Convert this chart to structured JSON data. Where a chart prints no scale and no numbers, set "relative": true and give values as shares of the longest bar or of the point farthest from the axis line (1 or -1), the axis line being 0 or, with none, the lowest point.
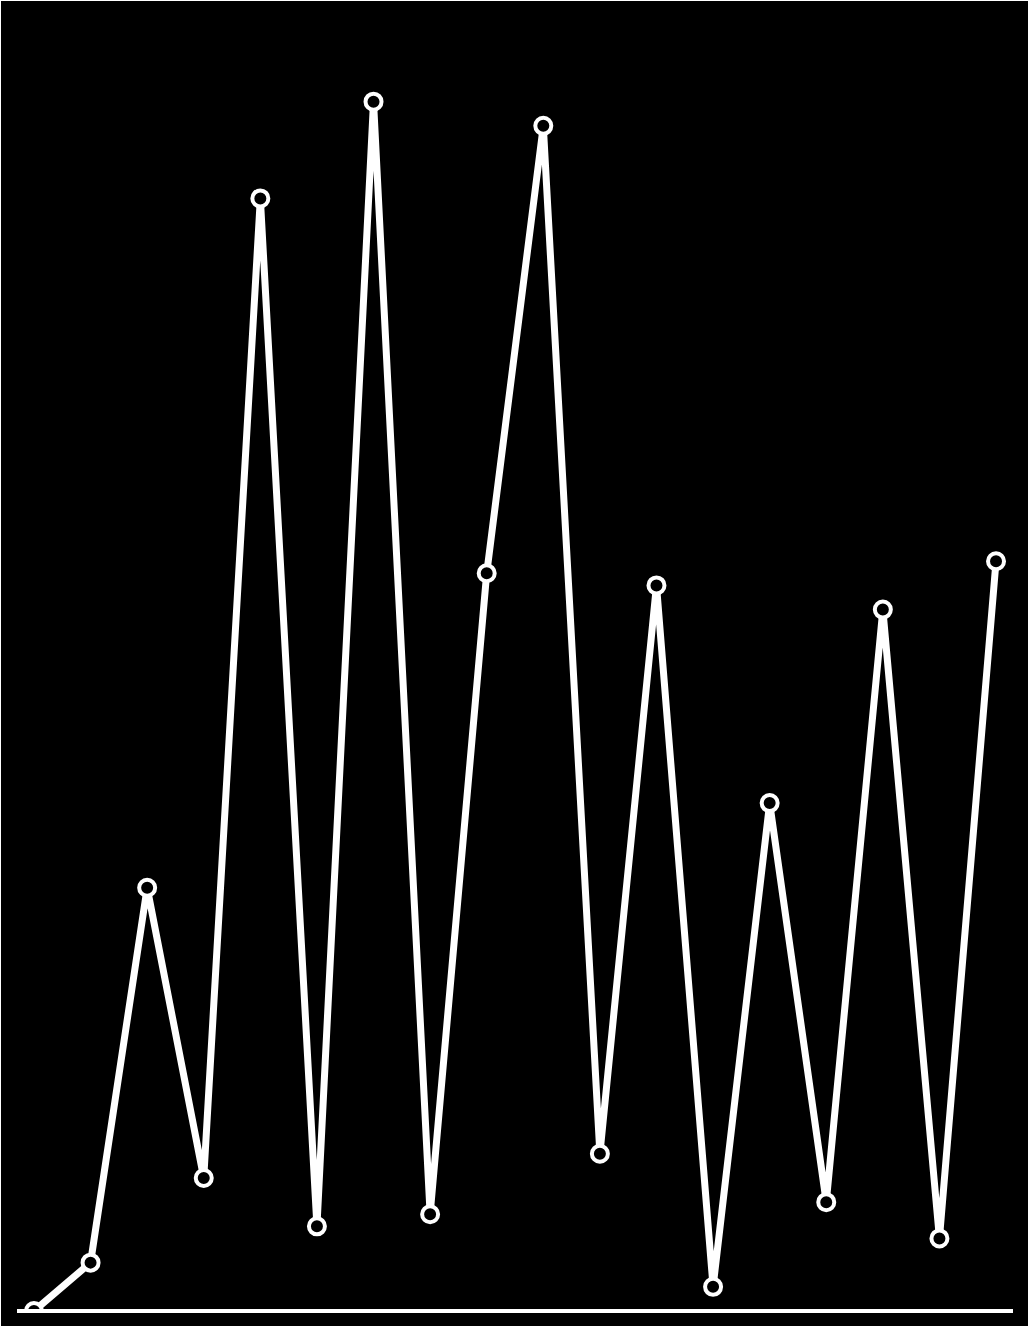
{
  "chart_data": {
    "type": "line",
    "relative": true,
    "categories": [
      null,
      null,
      null,
      null,
      null,
      null,
      null,
      null,
      null,
      null,
      null,
      null,
      null,
      null,
      null,
      null,
      null,
      null
    ],
    "series": [
      {
        "color": "#ffffff",
        "values": [
          0,
          0.04,
          0.35,
          0.11,
          0.92,
          0.07,
          1,
          0.08,
          0.61,
          0.98,
          0.13,
          0.6,
          0.02,
          0.42,
          0.09,
          0.58,
          0.06,
          0.62
        ]
      }
    ],
    "marker": "circle",
    "line_style": "solid",
    "grid": false
  }
}
